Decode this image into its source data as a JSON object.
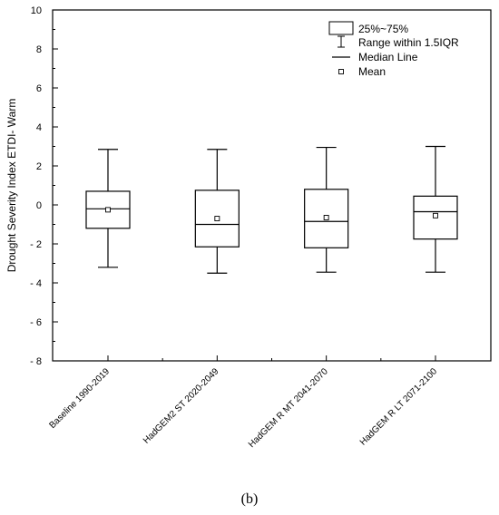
{
  "chart_data": {
    "type": "boxplot",
    "categories": [
      "Baseline 1990-2019",
      "HadGEM2 ST 2020-2049",
      "HadGEM R MT 2041-2070",
      "HadGEM R LT 2071-2100"
    ],
    "boxes": [
      {
        "whisker_low": -3.2,
        "q1": -1.2,
        "median": -0.2,
        "q3": 0.7,
        "whisker_high": 2.85,
        "mean": -0.25
      },
      {
        "whisker_low": -3.5,
        "q1": -2.15,
        "median": -1.0,
        "q3": 0.75,
        "whisker_high": 2.85,
        "mean": -0.7
      },
      {
        "whisker_low": -3.45,
        "q1": -2.2,
        "median": -0.85,
        "q3": 0.8,
        "whisker_high": 2.95,
        "mean": -0.65
      },
      {
        "whisker_low": -3.45,
        "q1": -1.75,
        "median": -0.35,
        "q3": 0.45,
        "whisker_high": 3.0,
        "mean": -0.55
      }
    ],
    "ylabel": "Drought Severity Index ETDI- Warm",
    "ylim": [
      -8,
      10
    ],
    "yticks": [
      -8,
      -6,
      -4,
      -2,
      0,
      2,
      4,
      6,
      8,
      10
    ],
    "ytick_labels": [
      "- 8",
      "- 6",
      "- 4",
      "- 2",
      "0",
      "2",
      "4",
      "6",
      "8",
      "10"
    ],
    "grid": false,
    "legend_position": "top-right",
    "legend": [
      {
        "symbol": "box",
        "label": "25%~75%"
      },
      {
        "symbol": "whisker",
        "label": "Range within 1.5IQR"
      },
      {
        "symbol": "line",
        "label": "Median Line"
      },
      {
        "symbol": "square",
        "label": "Mean"
      }
    ]
  },
  "caption": "(b)"
}
